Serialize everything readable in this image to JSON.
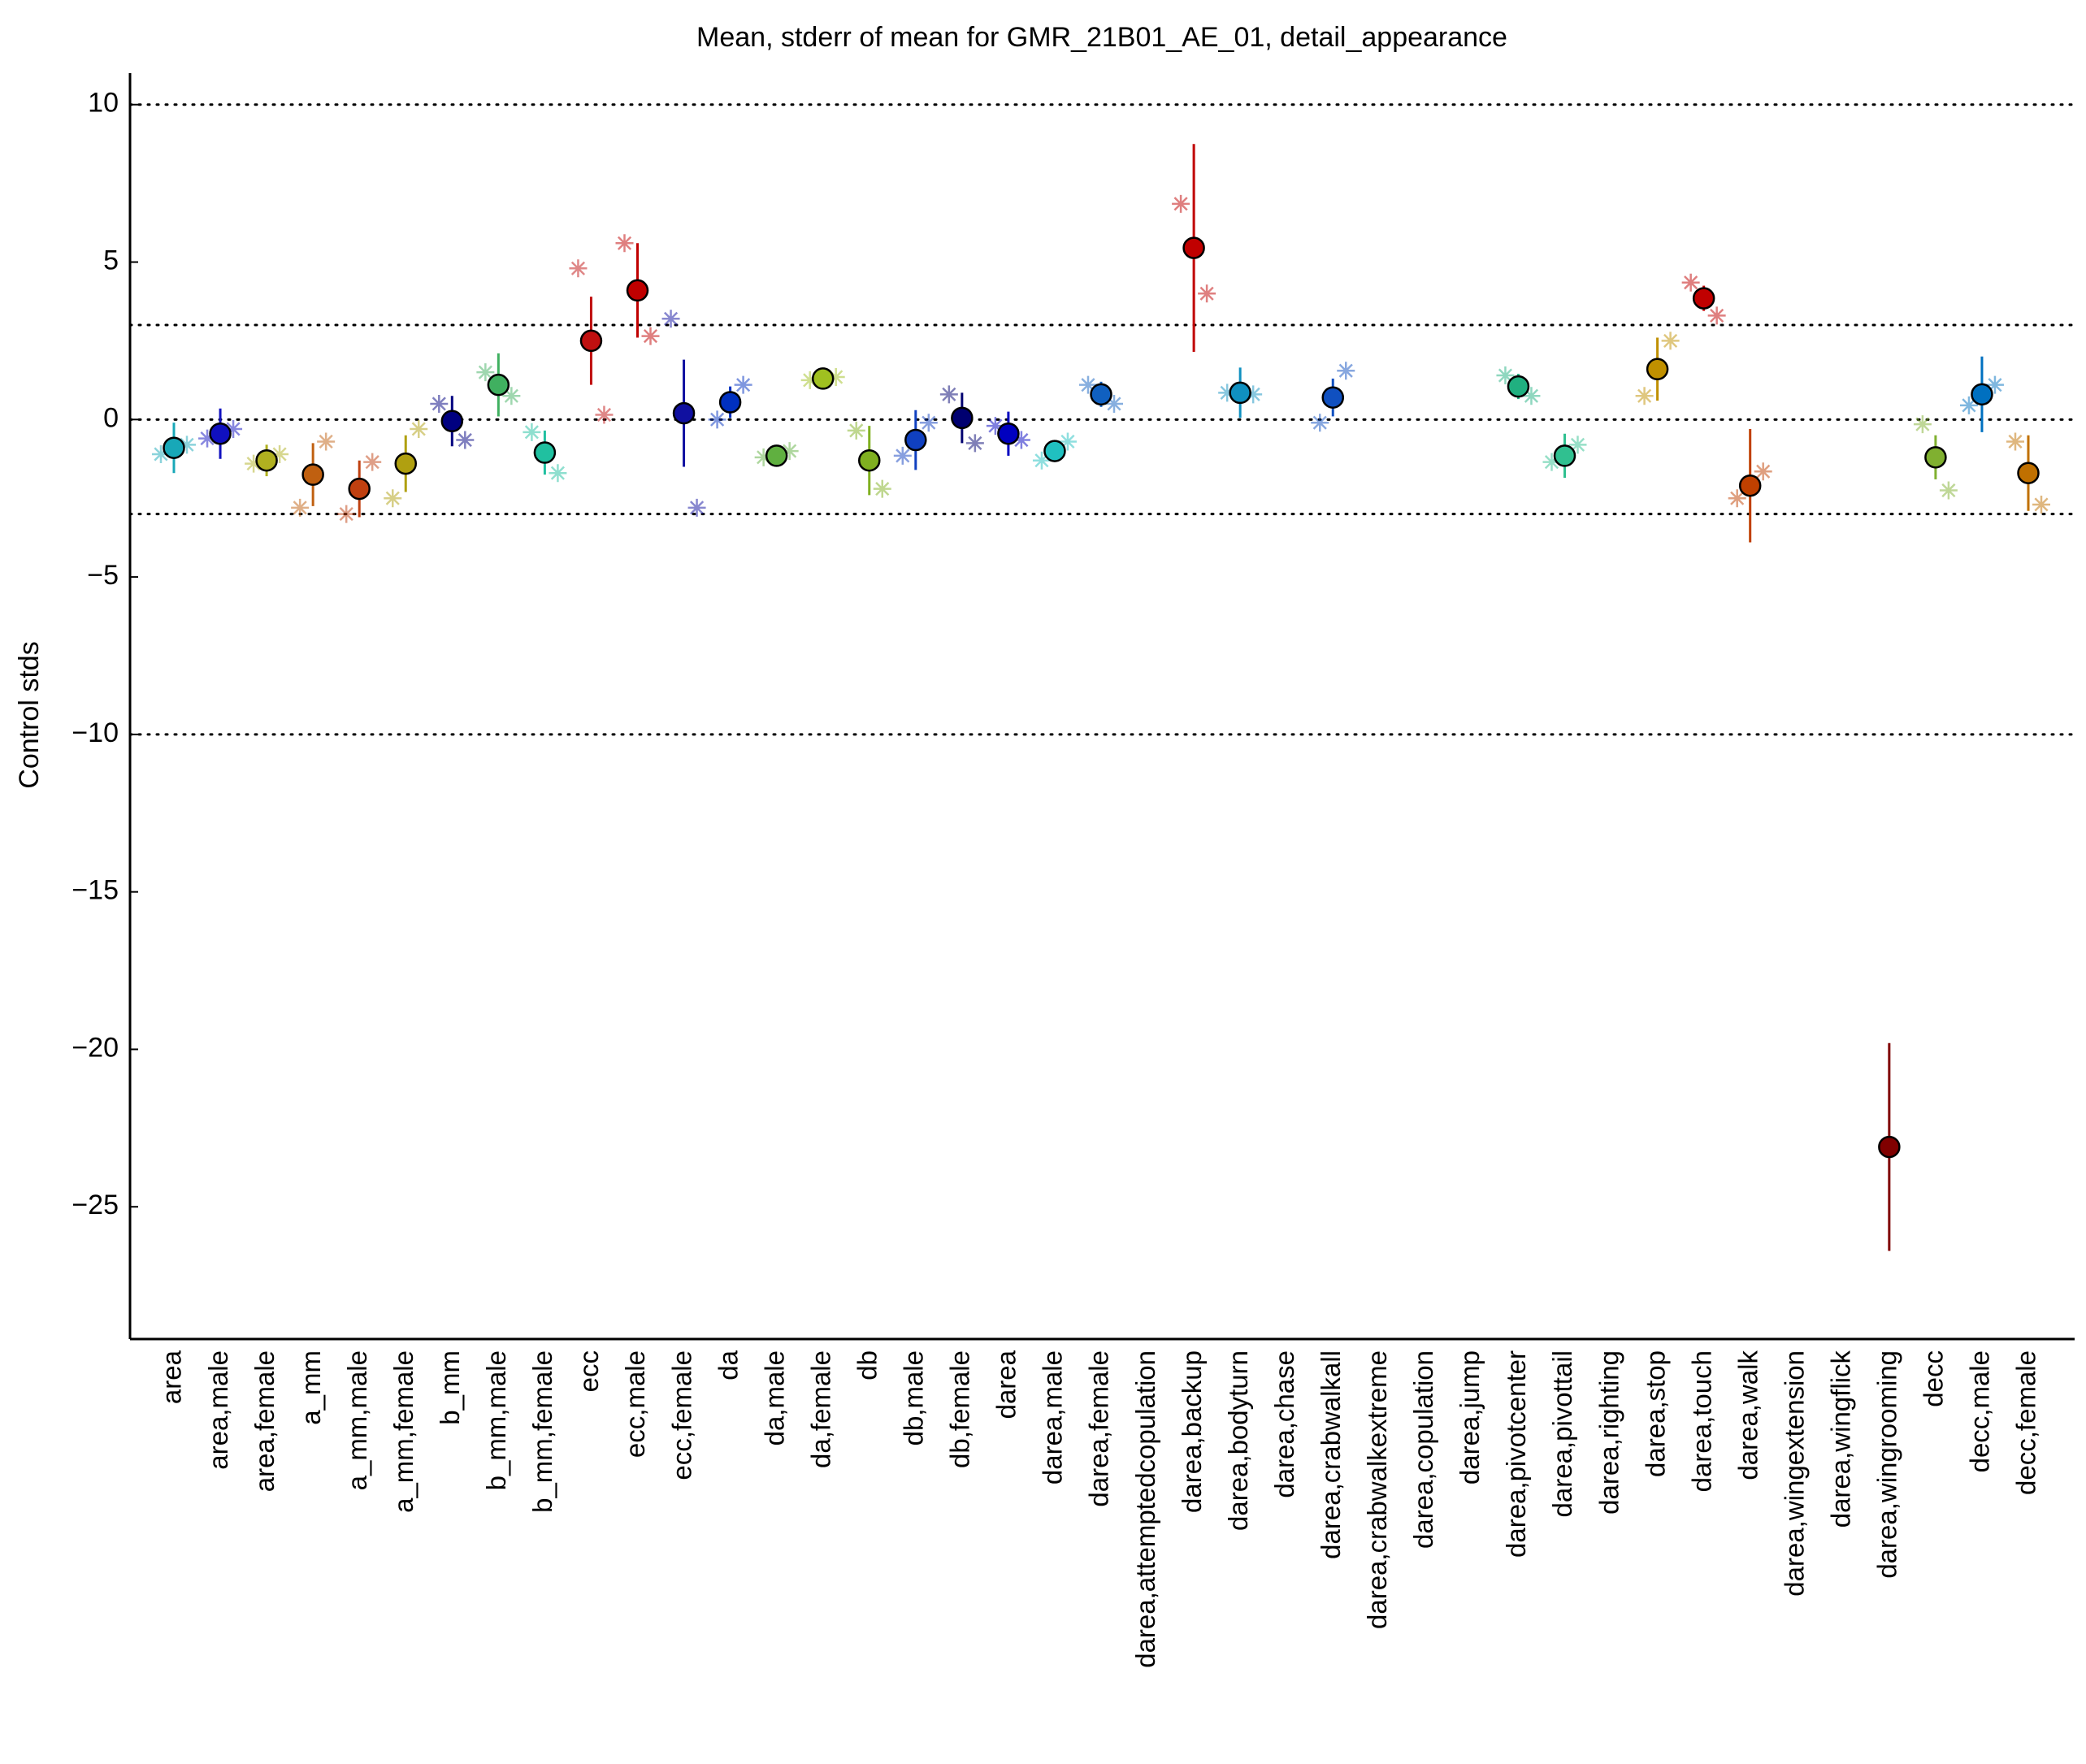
{
  "chart_data": {
    "type": "errorbar",
    "title": "Mean, stderr of mean for GMR_21B01_AE_01, detail_appearance",
    "ylabel": "Control stds",
    "categories": [
      "area",
      "area,male",
      "area,female",
      "a_mm",
      "a_mm,male",
      "a_mm,female",
      "b_mm",
      "b_mm,male",
      "b_mm,female",
      "ecc",
      "ecc,male",
      "ecc,female",
      "da",
      "da,male",
      "da,female",
      "db",
      "db,male",
      "db,female",
      "darea",
      "darea,male",
      "darea,female",
      "darea,attemptedcopulation",
      "darea,backup",
      "darea,bodyturn",
      "darea,chase",
      "darea,crabwalkall",
      "darea,crabwalkextreme",
      "darea,copulation",
      "darea,jump",
      "darea,pivotcenter",
      "darea,pivottail",
      "darea,righting",
      "darea,stop",
      "darea,touch",
      "darea,walk",
      "darea,wingextension",
      "darea,wingflick",
      "darea,wingrooming",
      "decc",
      "decc,male",
      "decc,female"
    ],
    "colors": [
      "#18a8b8",
      "#1010c0",
      "#b0b020",
      "#c06010",
      "#c04010",
      "#b0a010",
      "#000080",
      "#40b060",
      "#20c0a0",
      "#c01010",
      "#c00000",
      "#1010a0",
      "#0030c0",
      "#60b040",
      "#a0c020",
      "#80b020",
      "#1040c0",
      "#000070",
      "#0000c0",
      "#20c0c0",
      "#1060c0",
      "#909090",
      "#c00000",
      "#1090c0",
      "#909090",
      "#1050c0",
      "#909090",
      "#909090",
      "#909090",
      "#20b080",
      "#30c090",
      "#909090",
      "#c09000",
      "#c00000",
      "#c04000",
      "#909090",
      "#909090",
      "#800000",
      "#80b030",
      "#0070c0",
      "#c07000"
    ],
    "values": [
      -0.9,
      -0.45,
      -1.3,
      -1.75,
      -2.2,
      -1.4,
      -0.05,
      1.1,
      -1.05,
      2.5,
      4.1,
      0.2,
      0.55,
      -1.15,
      1.3,
      -1.3,
      -0.65,
      0.05,
      -0.45,
      -1.0,
      0.8,
      null,
      5.45,
      0.85,
      null,
      0.7,
      null,
      null,
      null,
      1.05,
      -1.15,
      null,
      1.6,
      3.85,
      -2.1,
      null,
      null,
      -23.1,
      -1.2,
      0.8,
      -1.7
    ],
    "errors": [
      0.8,
      0.8,
      0.5,
      1.0,
      0.9,
      0.9,
      0.8,
      1.0,
      0.7,
      1.4,
      1.5,
      1.7,
      0.5,
      0.2,
      0.2,
      1.1,
      0.95,
      0.8,
      0.7,
      0.3,
      0.4,
      null,
      3.3,
      0.8,
      null,
      0.6,
      null,
      null,
      null,
      0.4,
      0.7,
      null,
      1.0,
      0.4,
      1.8,
      null,
      null,
      3.3,
      0.7,
      1.2,
      1.2
    ],
    "left_markers": [
      -1.1,
      -0.6,
      -1.4,
      -2.8,
      -3.0,
      -2.5,
      0.5,
      1.5,
      -0.4,
      4.8,
      5.6,
      3.2,
      0.0,
      -1.2,
      1.25,
      -0.35,
      -1.15,
      0.8,
      -0.2,
      -1.3,
      1.1,
      null,
      6.85,
      0.85,
      null,
      -0.1,
      null,
      null,
      null,
      1.4,
      -1.35,
      null,
      0.75,
      4.35,
      -2.5,
      null,
      null,
      null,
      -0.15,
      0.45,
      -0.7
    ],
    "right_markers": [
      -0.8,
      -0.3,
      -1.1,
      -0.7,
      -1.35,
      -0.3,
      -0.65,
      0.75,
      -1.7,
      0.15,
      2.65,
      -2.8,
      1.1,
      -1.0,
      1.35,
      -2.2,
      -0.1,
      -0.75,
      -0.65,
      -0.7,
      0.5,
      null,
      4.0,
      0.8,
      null,
      1.55,
      null,
      null,
      null,
      0.75,
      -0.8,
      null,
      2.5,
      3.3,
      -1.65,
      null,
      null,
      null,
      -2.25,
      1.1,
      -2.7
    ],
    "ylim": [
      -29.2,
      11
    ],
    "yticks": [
      {
        "value": -25,
        "label": "−25"
      },
      {
        "value": -20,
        "label": "−20"
      },
      {
        "value": -15,
        "label": "−15"
      },
      {
        "value": -10,
        "label": "−10"
      },
      {
        "value": -5,
        "label": "−5"
      },
      0,
      5,
      10
    ],
    "reference_lines": [
      10,
      3,
      0,
      -3,
      -10
    ]
  }
}
